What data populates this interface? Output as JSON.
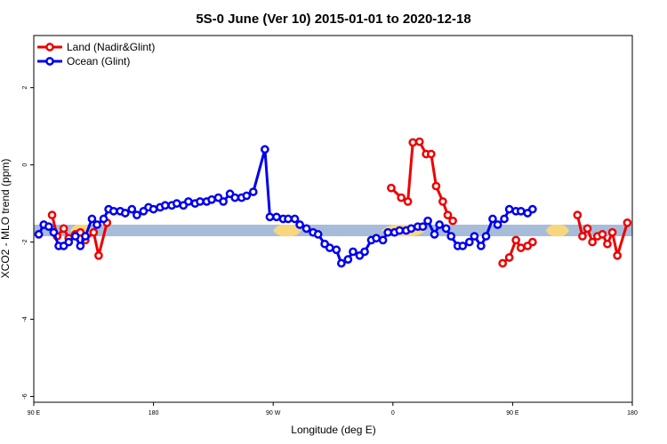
{
  "chart_data": {
    "type": "line",
    "title": "5S-0 June (Ver 10)   2015-01-01 to 2020-12-18",
    "xlabel": "Longitude (deg E)",
    "ylabel": "XCO2 - MLO trend (ppm)",
    "xlim": [
      90,
      450
    ],
    "ylim": [
      -6.15,
      3.35
    ],
    "x_ticks": [
      90,
      162,
      234,
      306,
      378,
      450
    ],
    "x_tick_labels": [
      "90 E",
      "180",
      "90 W",
      "0",
      "90 E",
      "180"
    ],
    "y_ticks": [
      -6,
      -4,
      -2,
      0,
      2
    ],
    "y_tick_labels": [
      "-6",
      "-4",
      "-2",
      "0",
      "2"
    ],
    "grid": false,
    "legend_position": "top-left",
    "band": {
      "ymin": -1.85,
      "ymax": -1.55,
      "ocean_color": "#a7bcd9",
      "land_color": "#f6d77e",
      "land_spans": [
        [
          112,
          125
        ],
        [
          234,
          251
        ],
        [
          299,
          326
        ],
        [
          398,
          412
        ]
      ]
    },
    "series": [
      {
        "name": "Land (Nadir&Glint)",
        "color": "#ee0000",
        "segments": [
          [
            [
              101,
              -1.3
            ],
            [
              104,
              -1.85
            ],
            [
              108,
              -1.65
            ],
            [
              111,
              -1.9
            ],
            [
              115,
              -1.8
            ],
            [
              118,
              -1.75
            ],
            [
              121,
              -1.95
            ],
            [
              126,
              -1.75
            ],
            [
              129,
              -2.35
            ],
            [
              134,
              -1.5
            ]
          ],
          [
            [
              305,
              -0.6
            ],
            [
              311,
              -0.85
            ],
            [
              315,
              -0.95
            ],
            [
              318,
              0.58
            ],
            [
              322,
              0.6
            ],
            [
              326,
              0.28
            ],
            [
              329,
              0.28
            ],
            [
              332,
              -0.55
            ],
            [
              336,
              -0.95
            ],
            [
              339,
              -1.3
            ],
            [
              342,
              -1.45
            ]
          ],
          [
            [
              372,
              -2.55
            ],
            [
              376,
              -2.4
            ],
            [
              380,
              -1.95
            ],
            [
              383,
              -2.15
            ],
            [
              387,
              -2.1
            ],
            [
              390,
              -2.0
            ]
          ],
          [
            [
              417,
              -1.3
            ],
            [
              420,
              -1.85
            ],
            [
              423,
              -1.65
            ],
            [
              426,
              -2.0
            ],
            [
              429,
              -1.85
            ],
            [
              432,
              -1.8
            ],
            [
              435,
              -2.05
            ],
            [
              438,
              -1.75
            ],
            [
              441,
              -2.35
            ],
            [
              447,
              -1.5
            ]
          ]
        ]
      },
      {
        "name": "Ocean (Glint)",
        "color": "#0000ee",
        "segments": [
          [
            [
              93,
              -1.8
            ],
            [
              96,
              -1.55
            ],
            [
              99,
              -1.6
            ],
            [
              102,
              -1.75
            ],
            [
              105,
              -2.1
            ],
            [
              108,
              -2.1
            ],
            [
              111,
              -2.0
            ],
            [
              115,
              -1.85
            ],
            [
              118,
              -2.1
            ],
            [
              121,
              -1.85
            ],
            [
              125,
              -1.4
            ],
            [
              128,
              -1.55
            ],
            [
              132,
              -1.4
            ],
            [
              135,
              -1.15
            ],
            [
              138,
              -1.2
            ],
            [
              142,
              -1.2
            ],
            [
              145,
              -1.25
            ],
            [
              149,
              -1.15
            ],
            [
              152,
              -1.3
            ],
            [
              156,
              -1.2
            ],
            [
              159,
              -1.1
            ],
            [
              162,
              -1.15
            ],
            [
              166,
              -1.1
            ],
            [
              169,
              -1.05
            ],
            [
              173,
              -1.05
            ],
            [
              176,
              -1.0
            ],
            [
              180,
              -1.05
            ],
            [
              183,
              -0.95
            ],
            [
              187,
              -1.0
            ],
            [
              190,
              -0.95
            ],
            [
              194,
              -0.95
            ],
            [
              197,
              -0.9
            ],
            [
              201,
              -0.85
            ],
            [
              204,
              -0.95
            ],
            [
              208,
              -0.75
            ],
            [
              211,
              -0.85
            ],
            [
              215,
              -0.85
            ],
            [
              218,
              -0.8
            ],
            [
              222,
              -0.7
            ],
            [
              229,
              0.4
            ],
            [
              232,
              -1.35
            ],
            [
              236,
              -1.35
            ],
            [
              240,
              -1.4
            ],
            [
              243,
              -1.4
            ],
            [
              247,
              -1.4
            ],
            [
              250,
              -1.55
            ],
            [
              254,
              -1.65
            ],
            [
              258,
              -1.75
            ],
            [
              261,
              -1.8
            ],
            [
              265,
              -2.05
            ],
            [
              268,
              -2.15
            ],
            [
              272,
              -2.2
            ],
            [
              275,
              -2.55
            ],
            [
              279,
              -2.45
            ],
            [
              282,
              -2.25
            ],
            [
              286,
              -2.35
            ],
            [
              289,
              -2.25
            ],
            [
              293,
              -1.95
            ],
            [
              296,
              -1.9
            ],
            [
              300,
              -1.95
            ],
            [
              303,
              -1.75
            ],
            [
              307,
              -1.75
            ],
            [
              310,
              -1.7
            ],
            [
              314,
              -1.7
            ],
            [
              317,
              -1.65
            ],
            [
              321,
              -1.6
            ],
            [
              324,
              -1.6
            ],
            [
              327,
              -1.45
            ],
            [
              331,
              -1.8
            ],
            [
              334,
              -1.55
            ],
            [
              338,
              -1.65
            ],
            [
              341,
              -1.85
            ],
            [
              345,
              -2.1
            ],
            [
              348,
              -2.1
            ],
            [
              352,
              -2.0
            ],
            [
              355,
              -1.85
            ],
            [
              359,
              -2.1
            ],
            [
              362,
              -1.85
            ],
            [
              366,
              -1.4
            ],
            [
              369,
              -1.55
            ],
            [
              373,
              -1.4
            ],
            [
              376,
              -1.15
            ],
            [
              380,
              -1.2
            ],
            [
              383,
              -1.2
            ],
            [
              387,
              -1.25
            ],
            [
              390,
              -1.15
            ]
          ]
        ]
      }
    ]
  }
}
